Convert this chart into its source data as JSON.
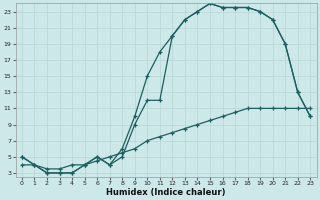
{
  "xlabel": "Humidex (Indice chaleur)",
  "bg_color": "#cce8e8",
  "line_color": "#1a6060",
  "grid_color": "#b8d4d4",
  "xlim": [
    -0.5,
    23.5
  ],
  "ylim": [
    2.5,
    24.0
  ],
  "xticks": [
    0,
    1,
    2,
    3,
    4,
    5,
    6,
    7,
    8,
    9,
    10,
    11,
    12,
    13,
    14,
    15,
    16,
    17,
    18,
    19,
    20,
    21,
    22,
    23
  ],
  "yticks": [
    3,
    5,
    7,
    9,
    11,
    13,
    15,
    17,
    19,
    21,
    23
  ],
  "line1_x": [
    0,
    1,
    2,
    3,
    4,
    5,
    6,
    7,
    8,
    9,
    10,
    11,
    12,
    13,
    14,
    15,
    16,
    17,
    18,
    19,
    20,
    21,
    22,
    23
  ],
  "line1_y": [
    5,
    4,
    3,
    3,
    3,
    4,
    5,
    4,
    6,
    10,
    15,
    18,
    20,
    22,
    23,
    24,
    23.5,
    23.5,
    23.5,
    23,
    22,
    19,
    13,
    10
  ],
  "line2_x": [
    0,
    1,
    2,
    3,
    4,
    5,
    6,
    7,
    8,
    9,
    10,
    11,
    12,
    13,
    14,
    15,
    16,
    17,
    18,
    19,
    20,
    21,
    22,
    23
  ],
  "line2_y": [
    5,
    4,
    3,
    3,
    3,
    4,
    5,
    4,
    5,
    9,
    12,
    12,
    20,
    22,
    23,
    24,
    23.5,
    23.5,
    23.5,
    23,
    22,
    19,
    13,
    10
  ],
  "line3_x": [
    0,
    1,
    2,
    3,
    4,
    5,
    6,
    7,
    8,
    9,
    10,
    11,
    12,
    13,
    14,
    15,
    16,
    17,
    18,
    19,
    20,
    21,
    22,
    23
  ],
  "line3_y": [
    4,
    4,
    3.5,
    3.5,
    4,
    4,
    4.5,
    5,
    5.5,
    6,
    7,
    7.5,
    8,
    8.5,
    9,
    9.5,
    10,
    10.5,
    11,
    11,
    11,
    11,
    11,
    11
  ]
}
